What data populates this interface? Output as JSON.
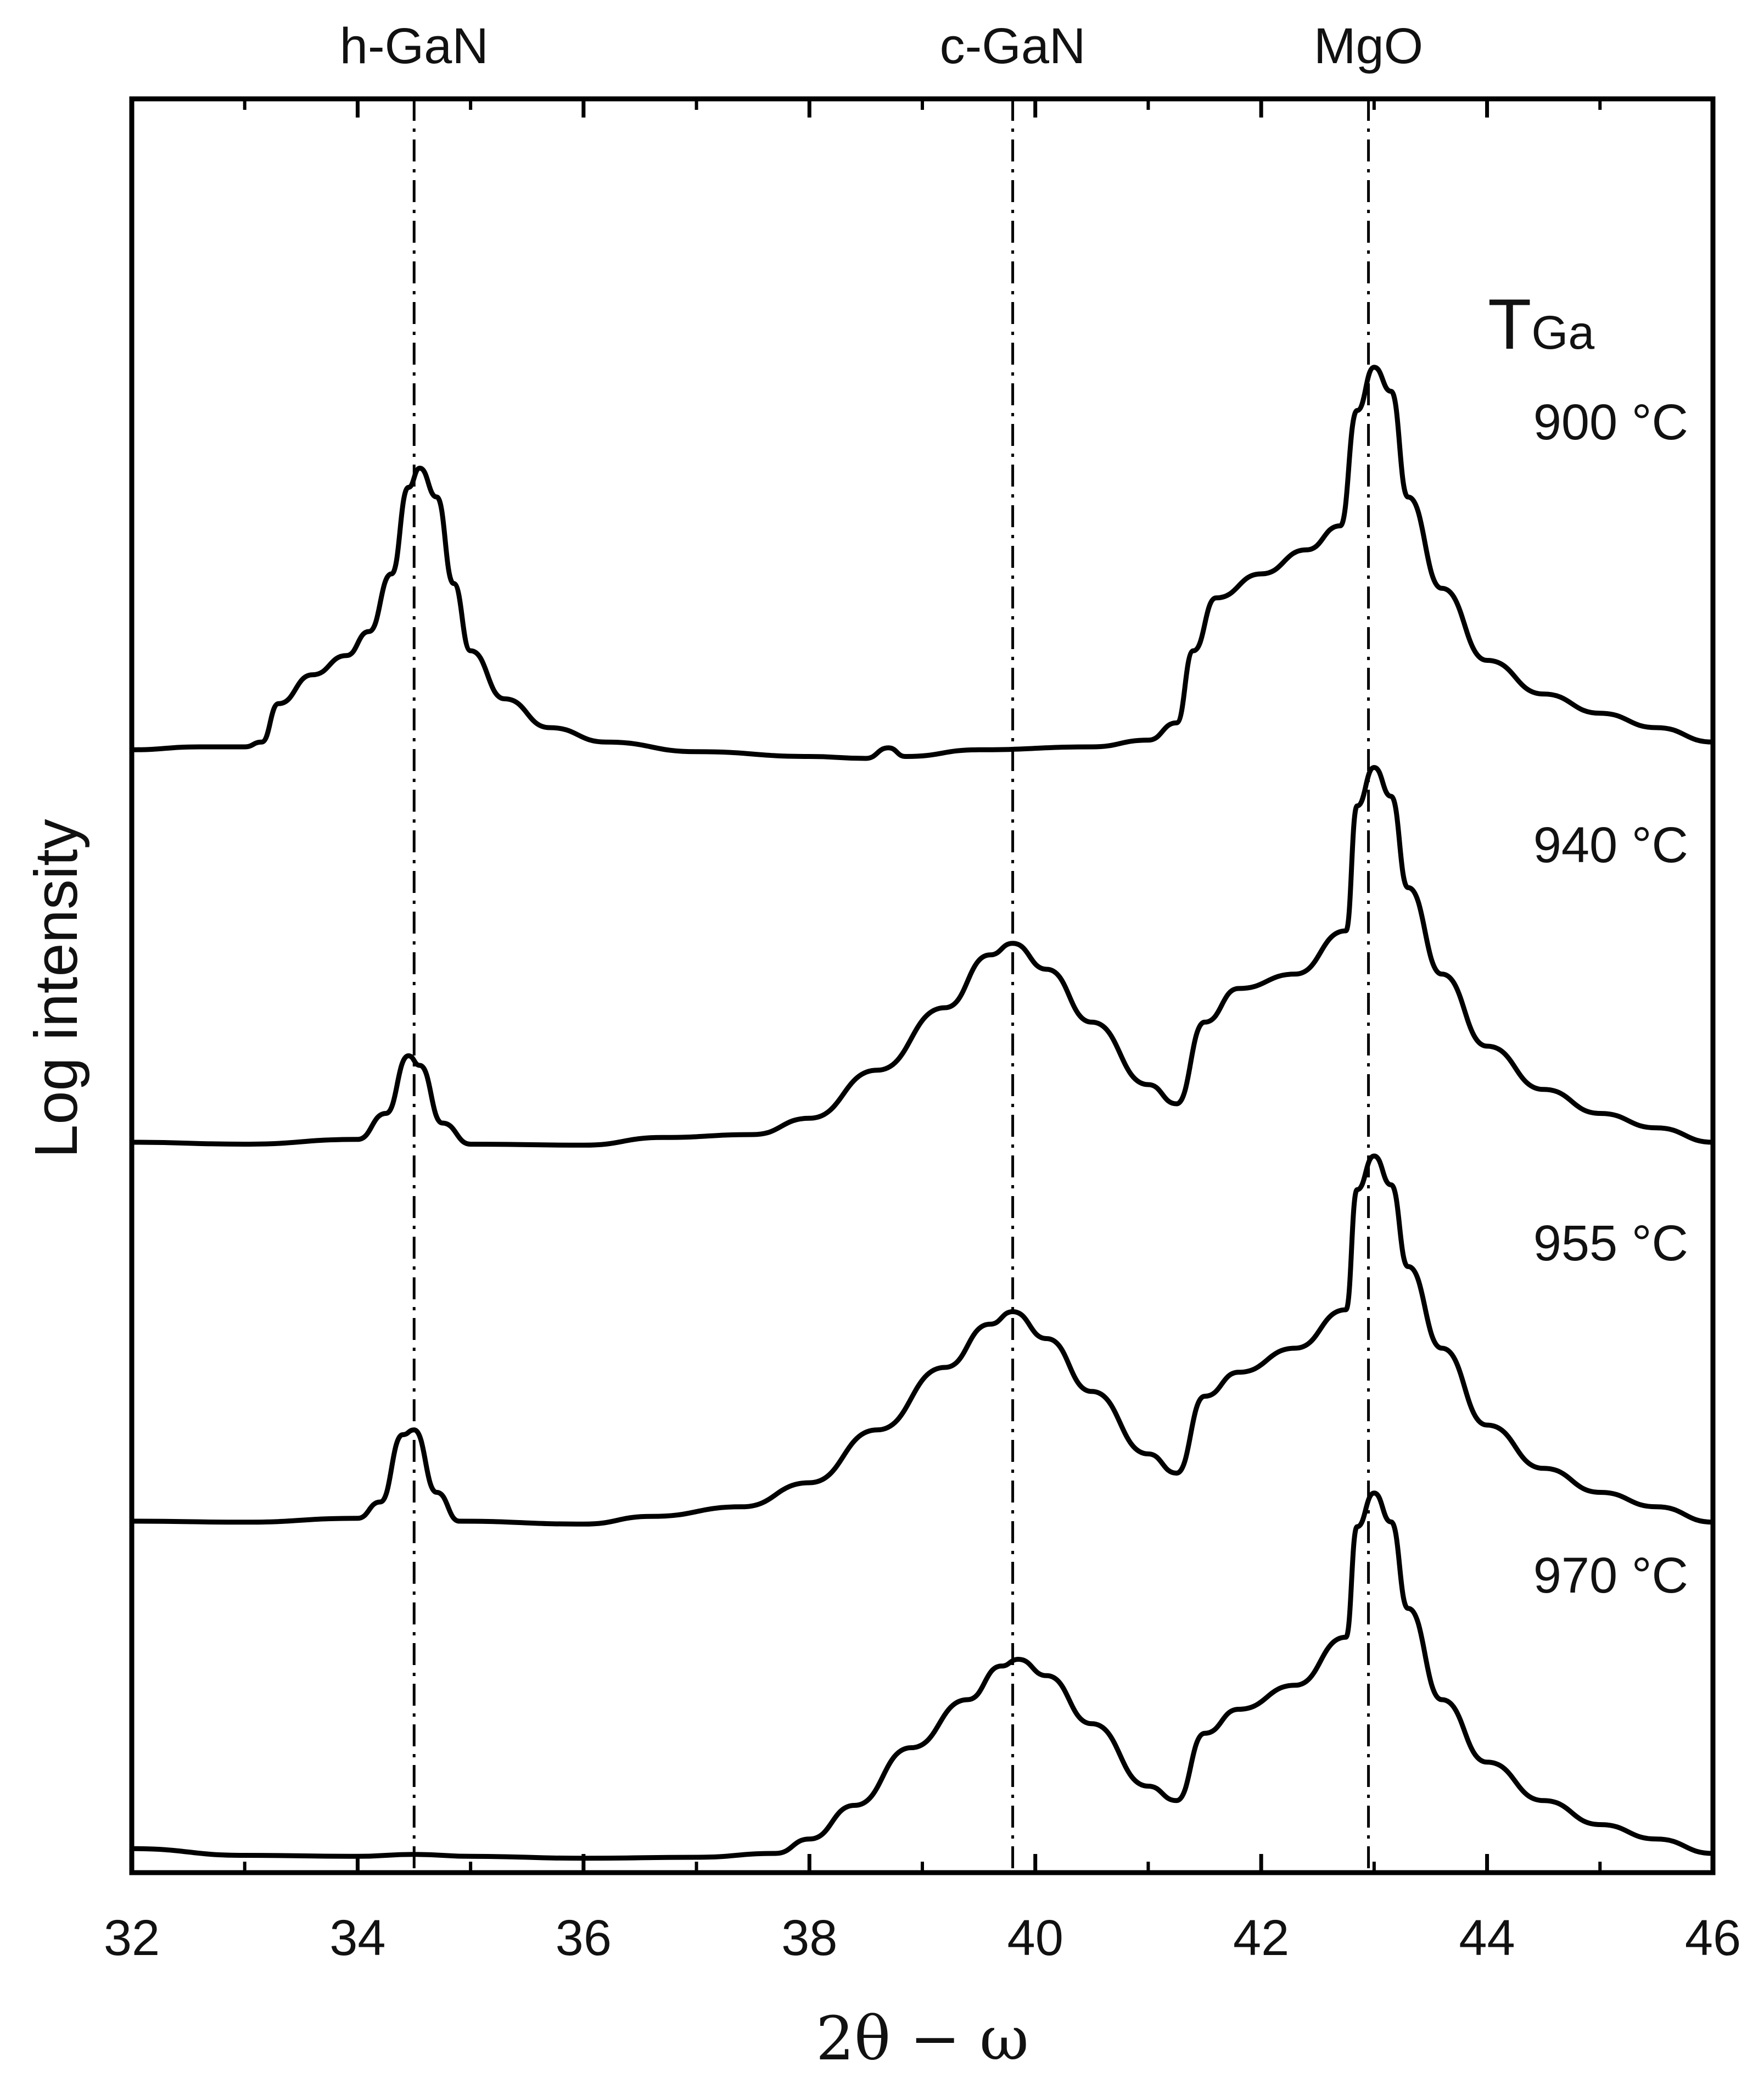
{
  "chart_data": {
    "type": "line",
    "title": "",
    "xlabel": "2θ − ω",
    "ylabel": "Log intensity",
    "xlim": [
      32,
      46
    ],
    "x_ticks": [
      "32",
      "34",
      "36",
      "38",
      "40",
      "42",
      "44",
      "46"
    ],
    "y_ticks_shown": false,
    "legend_title": "T",
    "legend_title_subscript": "Ga",
    "reference_lines": [
      {
        "label": "h-GaN",
        "x": 34.5
      },
      {
        "label": "c-GaN",
        "x": 39.8
      },
      {
        "label": "MgO",
        "x": 42.95
      }
    ],
    "y_units": "relative log intensity, curves vertically offset",
    "series": [
      {
        "name": "900 °C",
        "label": "900 °C",
        "points": [
          [
            32,
            0.97
          ],
          [
            32.6,
            1.0
          ],
          [
            33.0,
            1.0
          ],
          [
            33.15,
            1.05
          ],
          [
            33.3,
            1.45
          ],
          [
            33.6,
            1.75
          ],
          [
            33.9,
            1.95
          ],
          [
            34.1,
            2.2
          ],
          [
            34.3,
            2.8
          ],
          [
            34.45,
            3.7
          ],
          [
            34.55,
            3.9
          ],
          [
            34.7,
            3.6
          ],
          [
            34.85,
            2.7
          ],
          [
            35.0,
            2.0
          ],
          [
            35.3,
            1.5
          ],
          [
            35.7,
            1.2
          ],
          [
            36.2,
            1.05
          ],
          [
            37.0,
            0.95
          ],
          [
            38.0,
            0.9
          ],
          [
            38.5,
            0.88
          ],
          [
            38.7,
            0.99
          ],
          [
            38.85,
            0.9
          ],
          [
            39.5,
            0.97
          ],
          [
            40.5,
            1.0
          ],
          [
            41.0,
            1.07
          ],
          [
            41.25,
            1.25
          ],
          [
            41.4,
            2.0
          ],
          [
            41.6,
            2.55
          ],
          [
            42.0,
            2.8
          ],
          [
            42.4,
            3.05
          ],
          [
            42.7,
            3.3
          ],
          [
            42.85,
            4.5
          ],
          [
            43.0,
            4.95
          ],
          [
            43.15,
            4.7
          ],
          [
            43.3,
            3.6
          ],
          [
            43.6,
            2.65
          ],
          [
            44.0,
            1.9
          ],
          [
            44.5,
            1.55
          ],
          [
            45.0,
            1.35
          ],
          [
            45.5,
            1.2
          ],
          [
            46,
            1.05
          ]
        ]
      },
      {
        "name": "940 °C",
        "label": "940 °C",
        "points": [
          [
            32,
            1.0
          ],
          [
            33.0,
            0.98
          ],
          [
            34.0,
            1.03
          ],
          [
            34.25,
            1.3
          ],
          [
            34.45,
            1.9
          ],
          [
            34.55,
            1.8
          ],
          [
            34.75,
            1.2
          ],
          [
            35.0,
            0.98
          ],
          [
            36.0,
            0.97
          ],
          [
            36.7,
            1.05
          ],
          [
            37.5,
            1.08
          ],
          [
            38.0,
            1.25
          ],
          [
            38.6,
            1.75
          ],
          [
            39.2,
            2.4
          ],
          [
            39.6,
            2.95
          ],
          [
            39.8,
            3.07
          ],
          [
            40.1,
            2.8
          ],
          [
            40.5,
            2.25
          ],
          [
            41.0,
            1.6
          ],
          [
            41.25,
            1.4
          ],
          [
            41.5,
            2.25
          ],
          [
            41.8,
            2.6
          ],
          [
            42.3,
            2.75
          ],
          [
            42.75,
            3.2
          ],
          [
            42.85,
            4.5
          ],
          [
            43.0,
            4.9
          ],
          [
            43.15,
            4.6
          ],
          [
            43.3,
            3.65
          ],
          [
            43.6,
            2.75
          ],
          [
            44.0,
            2.0
          ],
          [
            44.5,
            1.55
          ],
          [
            45.0,
            1.3
          ],
          [
            45.5,
            1.15
          ],
          [
            46,
            1.0
          ]
        ]
      },
      {
        "name": "955 °C",
        "label": "955 °C",
        "points": [
          [
            32,
            1.0
          ],
          [
            33.0,
            0.99
          ],
          [
            34.0,
            1.03
          ],
          [
            34.2,
            1.2
          ],
          [
            34.4,
            1.9
          ],
          [
            34.5,
            1.95
          ],
          [
            34.7,
            1.3
          ],
          [
            34.9,
            1.0
          ],
          [
            36.0,
            0.97
          ],
          [
            36.6,
            1.05
          ],
          [
            37.4,
            1.15
          ],
          [
            38.0,
            1.4
          ],
          [
            38.6,
            1.95
          ],
          [
            39.2,
            2.6
          ],
          [
            39.6,
            3.05
          ],
          [
            39.8,
            3.18
          ],
          [
            40.1,
            2.9
          ],
          [
            40.5,
            2.35
          ],
          [
            41.0,
            1.7
          ],
          [
            41.25,
            1.5
          ],
          [
            41.5,
            2.3
          ],
          [
            41.8,
            2.55
          ],
          [
            42.3,
            2.8
          ],
          [
            42.75,
            3.2
          ],
          [
            42.85,
            4.45
          ],
          [
            43.0,
            4.8
          ],
          [
            43.15,
            4.5
          ],
          [
            43.3,
            3.65
          ],
          [
            43.6,
            2.8
          ],
          [
            44.0,
            2.0
          ],
          [
            44.5,
            1.55
          ],
          [
            45.0,
            1.3
          ],
          [
            45.5,
            1.15
          ],
          [
            46,
            0.99
          ]
        ]
      },
      {
        "name": "970 °C",
        "label": "970 °C",
        "points": [
          [
            32,
            1.05
          ],
          [
            33.0,
            0.98
          ],
          [
            34.0,
            0.97
          ],
          [
            34.5,
            0.99
          ],
          [
            35.0,
            0.97
          ],
          [
            36.0,
            0.95
          ],
          [
            37.0,
            0.96
          ],
          [
            37.7,
            1.0
          ],
          [
            38.0,
            1.15
          ],
          [
            38.4,
            1.5
          ],
          [
            38.9,
            2.1
          ],
          [
            39.4,
            2.6
          ],
          [
            39.7,
            2.95
          ],
          [
            39.85,
            3.02
          ],
          [
            40.1,
            2.85
          ],
          [
            40.5,
            2.35
          ],
          [
            41.0,
            1.7
          ],
          [
            41.25,
            1.55
          ],
          [
            41.5,
            2.25
          ],
          [
            41.8,
            2.5
          ],
          [
            42.3,
            2.75
          ],
          [
            42.75,
            3.25
          ],
          [
            42.85,
            4.4
          ],
          [
            43.0,
            4.75
          ],
          [
            43.15,
            4.45
          ],
          [
            43.3,
            3.55
          ],
          [
            43.6,
            2.6
          ],
          [
            44.0,
            1.95
          ],
          [
            44.5,
            1.55
          ],
          [
            45.0,
            1.3
          ],
          [
            45.5,
            1.15
          ],
          [
            46,
            1.0
          ]
        ]
      }
    ]
  }
}
